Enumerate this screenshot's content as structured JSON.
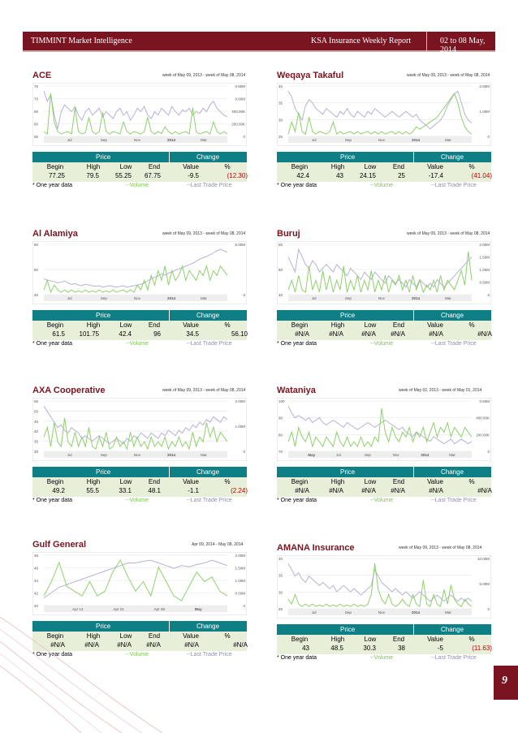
{
  "header": {
    "left": "TIMMINT Market Intelligence",
    "middle": "KSA Insurance Weekly Report",
    "right": "02 to 08 May, 2014"
  },
  "page_number": "9",
  "table_headers": {
    "price": "Price",
    "change": "Change",
    "cols": [
      "Begin",
      "High",
      "Low",
      "End",
      "Value",
      "%"
    ]
  },
  "footer_labels": {
    "note": "* One year data",
    "volume": "--Volume",
    "last_trade": "--Last Trade Price"
  },
  "panels": [
    {
      "title": "ACE",
      "caption": "week of May 09, 2013 - week of May 08, 2014",
      "values": [
        "77.25",
        "79.5",
        "55.25",
        "67.75",
        "-9.5",
        "(12.30)"
      ],
      "negative": true,
      "y_left": [
        "75",
        "70",
        "65",
        "60",
        "55"
      ],
      "y_right": [
        "0.80M",
        "0.60M",
        "400.00K",
        "200.00K",
        "0"
      ],
      "x_labels": [
        "Jul",
        "Sep",
        "Nov",
        "2014",
        "Mar"
      ],
      "price_shape": [
        72,
        66,
        70,
        58,
        50,
        60,
        64,
        62,
        60,
        63,
        58,
        55,
        60,
        62,
        58,
        60,
        62,
        57,
        60,
        58,
        56,
        60,
        62,
        58,
        60,
        55,
        58,
        62,
        60,
        63,
        58,
        56,
        60,
        58,
        62,
        60,
        58,
        63,
        60,
        58,
        61,
        60,
        62,
        58,
        60,
        59,
        62,
        60,
        64,
        66,
        62,
        60,
        58,
        57
      ],
      "volume_shape": [
        0.1,
        0.05,
        0.9,
        0.3,
        0.1,
        0.05,
        0.08,
        0.1,
        0.05,
        0.6,
        0.1,
        0.05,
        0.08,
        0.4,
        0.1,
        0.05,
        0.1,
        0.5,
        0.1,
        0.05,
        0.1,
        0.08,
        0.05,
        0.3,
        0.1,
        0.05,
        0.1,
        0.08,
        0.05,
        0.1,
        0.4,
        0.1,
        0.05,
        0.1,
        0.06,
        0.2,
        0.1,
        0.05,
        0.1,
        0.05,
        0.08,
        0.1,
        0.05,
        0.6,
        0.1,
        0.05,
        0.08,
        0.1,
        0.05,
        0.3,
        0.1,
        0.05,
        0.1,
        0.05
      ]
    },
    {
      "title": "Weqaya Takaful",
      "caption": "week of May 09, 2013 - week of May 08, 2014",
      "values": [
        "42.4",
        "43",
        "24.15",
        "25",
        "-17.4",
        "(41.04)"
      ],
      "negative": true,
      "y_left": [
        "40",
        "35",
        "30",
        "25"
      ],
      "y_right": [
        "2.00M",
        "1.00M",
        "0"
      ],
      "x_labels": [
        "Jul",
        "Sep",
        "Nov",
        "2014",
        "Mar"
      ],
      "price_shape": [
        38,
        36,
        32,
        30,
        28,
        33,
        35,
        34,
        32,
        31,
        30,
        32,
        31,
        30,
        29,
        31,
        30,
        32,
        30,
        29,
        31,
        30,
        29,
        31,
        30,
        32,
        31,
        30,
        29,
        30,
        31,
        30,
        29,
        30,
        31,
        30,
        29,
        30,
        28,
        27,
        26,
        25,
        26,
        27,
        28,
        30,
        33,
        35,
        37,
        38,
        34,
        30,
        28,
        27
      ],
      "volume_shape": [
        0.05,
        0.3,
        0.1,
        0.5,
        0.1,
        0.05,
        0.4,
        0.1,
        0.05,
        0.1,
        0.08,
        0.05,
        0.1,
        0.3,
        0.05,
        0.1,
        0.05,
        0.08,
        0.1,
        0.05,
        0.1,
        0.05,
        0.08,
        0.1,
        0.05,
        0.1,
        0.05,
        0.1,
        0.05,
        0.08,
        0.1,
        0.05,
        0.1,
        0.05,
        0.1,
        0.05,
        0.1,
        0.2,
        0.15,
        0.2,
        0.25,
        0.3,
        0.35,
        0.4,
        0.5,
        0.6,
        0.7,
        0.8,
        0.9,
        0.7,
        0.4,
        0.2,
        0.1,
        0.05
      ]
    },
    {
      "title": "Al Alamiya",
      "caption": "week of May 09, 2013 - week of May 08, 2014",
      "values": [
        "61.5",
        "101.75",
        "42.4",
        "96",
        "34.5",
        "56.10"
      ],
      "negative": false,
      "y_left": [
        "80",
        "60",
        "40"
      ],
      "y_right": [
        "5.00M",
        "0"
      ],
      "x_labels": [
        "Jul",
        "Sep",
        "Nov",
        "2014",
        "Mar"
      ],
      "price_shape": [
        58,
        56,
        55,
        54,
        52,
        53,
        55,
        52,
        50,
        51,
        49,
        48,
        50,
        49,
        48,
        47,
        48,
        46,
        47,
        48,
        47,
        46,
        47,
        48,
        46,
        47,
        48,
        49,
        50,
        52,
        55,
        58,
        60,
        62,
        65,
        63,
        66,
        68,
        70,
        72,
        74,
        76,
        78,
        80,
        83,
        86,
        88,
        90,
        92,
        95,
        98,
        100,
        98,
        96
      ],
      "volume_shape": [
        0.1,
        0.3,
        0.05,
        0.2,
        0.1,
        0.05,
        0.1,
        0.05,
        0.1,
        0.05,
        0.08,
        0.05,
        0.1,
        0.05,
        0.08,
        0.05,
        0.1,
        0.05,
        0.08,
        0.05,
        0.1,
        0.05,
        0.08,
        0.1,
        0.05,
        0.1,
        0.05,
        0.2,
        0.1,
        0.3,
        0.1,
        0.4,
        0.2,
        0.5,
        0.3,
        0.6,
        0.2,
        0.5,
        0.3,
        0.4,
        0.6,
        0.3,
        0.5,
        0.4,
        0.3,
        0.5,
        0.4,
        0.6,
        0.3,
        0.5,
        0.4,
        0.6,
        0.5,
        0.4
      ]
    },
    {
      "title": "Buruj",
      "caption": "week of May 09, 2013 - week of May 08, 2014",
      "values": [
        "#N/A",
        "#N/A",
        "#N/A",
        "#N/A",
        "#N/A",
        "#N/A"
      ],
      "negative": false,
      "y_left": [
        "60",
        "50",
        "40"
      ],
      "y_right": [
        "2.00M",
        "1.50M",
        "1.00M",
        "0.50M",
        "0"
      ],
      "x_labels": [
        "Jul",
        "Sep",
        "Nov",
        "2014",
        "Mar"
      ],
      "price_shape": [
        50,
        48,
        46,
        52,
        50,
        48,
        47,
        49,
        48,
        46,
        47,
        48,
        47,
        46,
        48,
        47,
        46,
        45,
        47,
        46,
        45,
        44,
        46,
        45,
        44,
        46,
        45,
        44,
        43,
        45,
        44,
        43,
        44,
        43,
        42,
        44,
        43,
        42,
        44,
        43,
        42,
        43,
        42,
        44,
        43,
        42,
        43,
        44,
        45,
        46,
        47,
        48,
        49,
        50
      ],
      "volume_shape": [
        0.1,
        0.3,
        0.05,
        0.4,
        0.1,
        0.05,
        0.6,
        0.1,
        0.3,
        0.05,
        0.5,
        0.1,
        0.4,
        0.05,
        0.3,
        0.1,
        0.6,
        0.05,
        0.3,
        0.1,
        0.4,
        0.05,
        0.3,
        0.1,
        0.5,
        0.05,
        0.3,
        0.1,
        0.4,
        0.05,
        0.3,
        0.2,
        0.4,
        0.1,
        0.3,
        0.05,
        0.4,
        0.1,
        0.3,
        0.05,
        0.2,
        0.1,
        0.3,
        0.05,
        0.4,
        0.1,
        0.3,
        0.2,
        0.1,
        0.3,
        0.5,
        0.2,
        0.9,
        0.3
      ]
    },
    {
      "title": "AXA Cooperative",
      "caption": "week of May 09, 2013 - week of May 08, 2014",
      "values": [
        "49.2",
        "55.5",
        "33.1",
        "48.1",
        "-1.1",
        "(2.24)"
      ],
      "negative": true,
      "y_left": [
        "55",
        "50",
        "45",
        "40",
        "35",
        "30"
      ],
      "y_right": [
        "2.00M",
        "1.00M",
        "0"
      ],
      "x_labels": [
        "Jul",
        "Sep",
        "Nov",
        "2014",
        "Mar"
      ],
      "price_shape": [
        52,
        50,
        48,
        46,
        44,
        45,
        43,
        42,
        44,
        43,
        42,
        40,
        41,
        40,
        39,
        40,
        41,
        40,
        39,
        38,
        39,
        40,
        39,
        38,
        40,
        39,
        41,
        40,
        42,
        41,
        40,
        42,
        41,
        40,
        42,
        41,
        43,
        42,
        41,
        43,
        42,
        44,
        43,
        45,
        44,
        46,
        45,
        47,
        46,
        48,
        47,
        46,
        48,
        47
      ],
      "volume_shape": [
        0.3,
        0.5,
        0.1,
        0.6,
        0.2,
        0.1,
        0.7,
        0.2,
        0.1,
        0.4,
        0.1,
        0.3,
        0.1,
        0.5,
        0.1,
        0.05,
        0.3,
        0.1,
        0.4,
        0.05,
        0.1,
        0.3,
        0.1,
        0.2,
        0.05,
        0.4,
        0.1,
        0.3,
        0.1,
        0.2,
        0.05,
        0.3,
        0.1,
        0.2,
        0.1,
        0.3,
        0.05,
        0.2,
        0.1,
        0.3,
        0.1,
        0.2,
        0.05,
        0.4,
        0.1,
        0.3,
        0.2,
        0.6,
        0.3,
        0.5,
        0.2,
        0.4,
        0.3,
        0.2
      ]
    },
    {
      "title": "Wataniya",
      "caption": "week of May 02, 2013 - week of May 01, 2014",
      "values": [
        "#N/A",
        "#N/A",
        "#N/A",
        "#N/A",
        "#N/A",
        "#N/A"
      ],
      "negative": false,
      "y_left": [
        "100",
        "90",
        "80",
        "70"
      ],
      "y_right": [
        "0.60M",
        "400.00K",
        "200.00K",
        "0"
      ],
      "x_labels": [
        "May",
        "Jul",
        "Sep",
        "Nov",
        "2014",
        "Mar"
      ],
      "price_shape": [
        95,
        92,
        90,
        91,
        90,
        89,
        90,
        88,
        89,
        90,
        88,
        87,
        88,
        89,
        88,
        87,
        86,
        88,
        87,
        86,
        85,
        86,
        87,
        88,
        87,
        86,
        87,
        88,
        89,
        88,
        87,
        86,
        85,
        86,
        84,
        83,
        82,
        84,
        83,
        82,
        81,
        80,
        82,
        81,
        80,
        79,
        80,
        81,
        79,
        80,
        81,
        80,
        79,
        80
      ],
      "volume_shape": [
        0.2,
        0.4,
        0.1,
        0.5,
        0.3,
        0.2,
        0.4,
        0.1,
        0.3,
        0.2,
        0.1,
        0.3,
        0.2,
        0.1,
        0.4,
        0.2,
        0.1,
        0.3,
        0.1,
        0.2,
        0.1,
        0.3,
        0.1,
        0.2,
        0.1,
        0.3,
        0.2,
        0.9,
        0.4,
        0.2,
        0.5,
        0.3,
        0.2,
        0.4,
        0.3,
        0.5,
        0.2,
        0.4,
        0.3,
        0.5,
        0.2,
        0.4,
        0.6,
        0.3,
        0.5,
        0.4,
        0.6,
        0.3,
        0.5,
        0.4,
        0.3,
        0.5,
        0.4,
        0.3
      ]
    },
    {
      "title": "Gulf General",
      "caption": "Apr 09, 2014 - May 08, 2014",
      "values": [
        "#N/A",
        "#N/A",
        "#N/A",
        "#N/A",
        "#N/A",
        "#N/A"
      ],
      "negative": false,
      "y_left": [
        "48",
        "46",
        "44",
        "42",
        "40"
      ],
      "y_right": [
        "2.00M",
        "1.50M",
        "1.00M",
        "0.50M",
        "0"
      ],
      "x_labels": [
        "Apr 14",
        "Apr 21",
        "Apr 28",
        "May"
      ],
      "price_shape": [
        41,
        42,
        43,
        43.5,
        44,
        44.5,
        45,
        45.5,
        46,
        46.5,
        47,
        47.5,
        47.5,
        47.8,
        48,
        47.5,
        47,
        46.5,
        47,
        46.8,
        47.2,
        47.5,
        48,
        47.5,
        47
      ],
      "volume_shape": [
        0.2,
        0.5,
        0.9,
        0.4,
        0.3,
        0.2,
        0.5,
        0.2,
        0.3,
        0.7,
        0.95,
        0.6,
        0.3,
        0.5,
        0.2,
        0.8,
        0.5,
        0.2,
        0.1,
        0.4,
        0.7,
        0.5,
        0.6,
        0.3,
        0.2
      ]
    },
    {
      "title": "AMANA Insurance",
      "caption": "week of May 09, 2013 - week of May 08, 2014",
      "values": [
        "43",
        "48.5",
        "30.3",
        "38",
        "-5",
        "(11.63)"
      ],
      "negative": true,
      "y_left": [
        "40",
        "35",
        "30",
        "25"
      ],
      "y_right": [
        "10.00M",
        "5.00M",
        "0"
      ],
      "x_labels": [
        "Jul",
        "Sep",
        "Nov",
        "2014",
        "Mar"
      ],
      "price_shape": [
        42,
        40,
        38,
        39,
        37,
        36,
        38,
        37,
        36,
        35,
        36,
        35,
        34,
        35,
        33,
        34,
        35,
        34,
        33,
        34,
        33,
        32,
        33,
        34,
        35,
        40,
        38,
        36,
        35,
        34,
        33,
        34,
        33,
        32,
        33,
        32,
        31,
        32,
        33,
        32,
        31,
        30,
        31,
        32,
        31,
        30,
        31,
        32,
        31,
        30,
        31,
        30,
        31,
        30
      ],
      "volume_shape": [
        0.2,
        0.1,
        0.3,
        0.1,
        0.05,
        0.1,
        0.05,
        0.1,
        0.05,
        0.08,
        0.05,
        0.1,
        0.05,
        0.08,
        0.05,
        0.1,
        0.05,
        0.08,
        0.05,
        0.1,
        0.05,
        0.08,
        0.05,
        0.1,
        0.3,
        0.95,
        0.4,
        0.2,
        0.1,
        0.3,
        0.1,
        0.05,
        0.1,
        0.2,
        0.1,
        0.05,
        0.3,
        0.1,
        0.05,
        0.6,
        0.1,
        0.05,
        0.3,
        0.1,
        0.05,
        0.4,
        0.1,
        0.5,
        0.2,
        0.1,
        0.05,
        0.2,
        0.1,
        0.05
      ]
    }
  ]
}
